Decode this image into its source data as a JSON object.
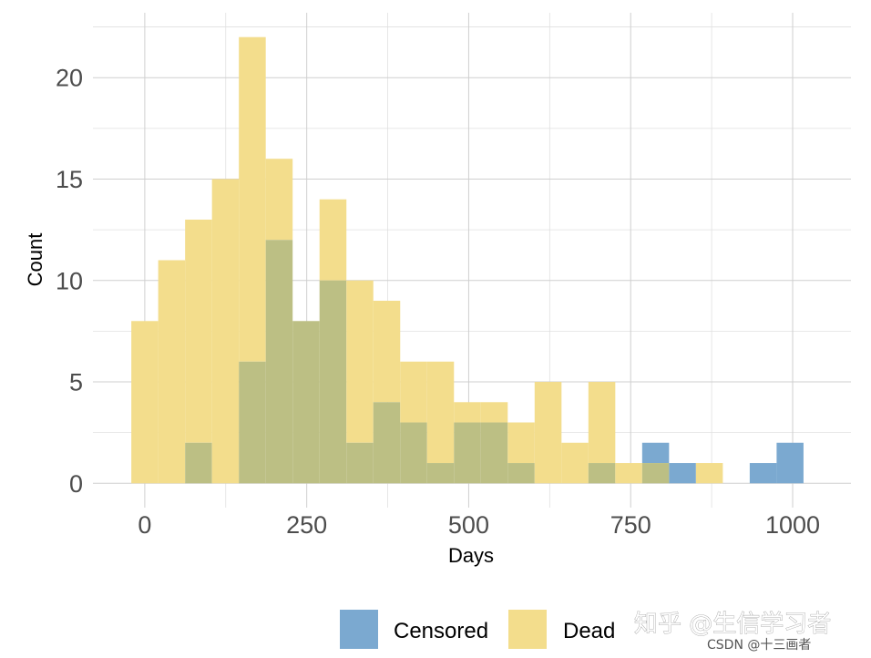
{
  "chart_data": {
    "type": "bar",
    "xlabel": "Days",
    "ylabel": "Count",
    "xlim": [
      -80,
      1090
    ],
    "ylim": [
      -1.2,
      23.2
    ],
    "x_ticks": [
      0,
      250,
      500,
      750,
      1000
    ],
    "x_tick_labels": [
      "0",
      "250",
      "500",
      "750",
      "1000"
    ],
    "y_ticks": [
      0,
      5,
      10,
      15,
      20
    ],
    "y_tick_labels": [
      "0",
      "5",
      "10",
      "15",
      "20"
    ],
    "grid": true,
    "bin_width": 41.5,
    "bin_centers": [
      0,
      41.5,
      83,
      124.5,
      166,
      207.5,
      249,
      290.5,
      332,
      373.5,
      415,
      456.5,
      498,
      539.5,
      581,
      622.5,
      664,
      705.5,
      747,
      788.5,
      830,
      871.5,
      913,
      954.5,
      996
    ],
    "series": [
      {
        "name": "Censored",
        "color": "#7BA9D0",
        "values": [
          0,
          0,
          2,
          0,
          6,
          12,
          8,
          10,
          2,
          4,
          3,
          1,
          3,
          3,
          1,
          0,
          0,
          1,
          0,
          2,
          1,
          0,
          0,
          1,
          2
        ]
      },
      {
        "name": "Dead",
        "color": "#F3DD8C",
        "values": [
          8,
          11,
          13,
          15,
          22,
          16,
          8,
          14,
          10,
          9,
          6,
          6,
          4,
          4,
          3,
          5,
          2,
          5,
          1,
          1,
          0,
          1,
          0,
          0,
          0
        ]
      }
    ],
    "overlap_color": "#BCBF84",
    "legend_position": "bottom"
  },
  "watermark": {
    "main": "知乎 @生信学习者",
    "sub": "CSDN @十三画者"
  }
}
